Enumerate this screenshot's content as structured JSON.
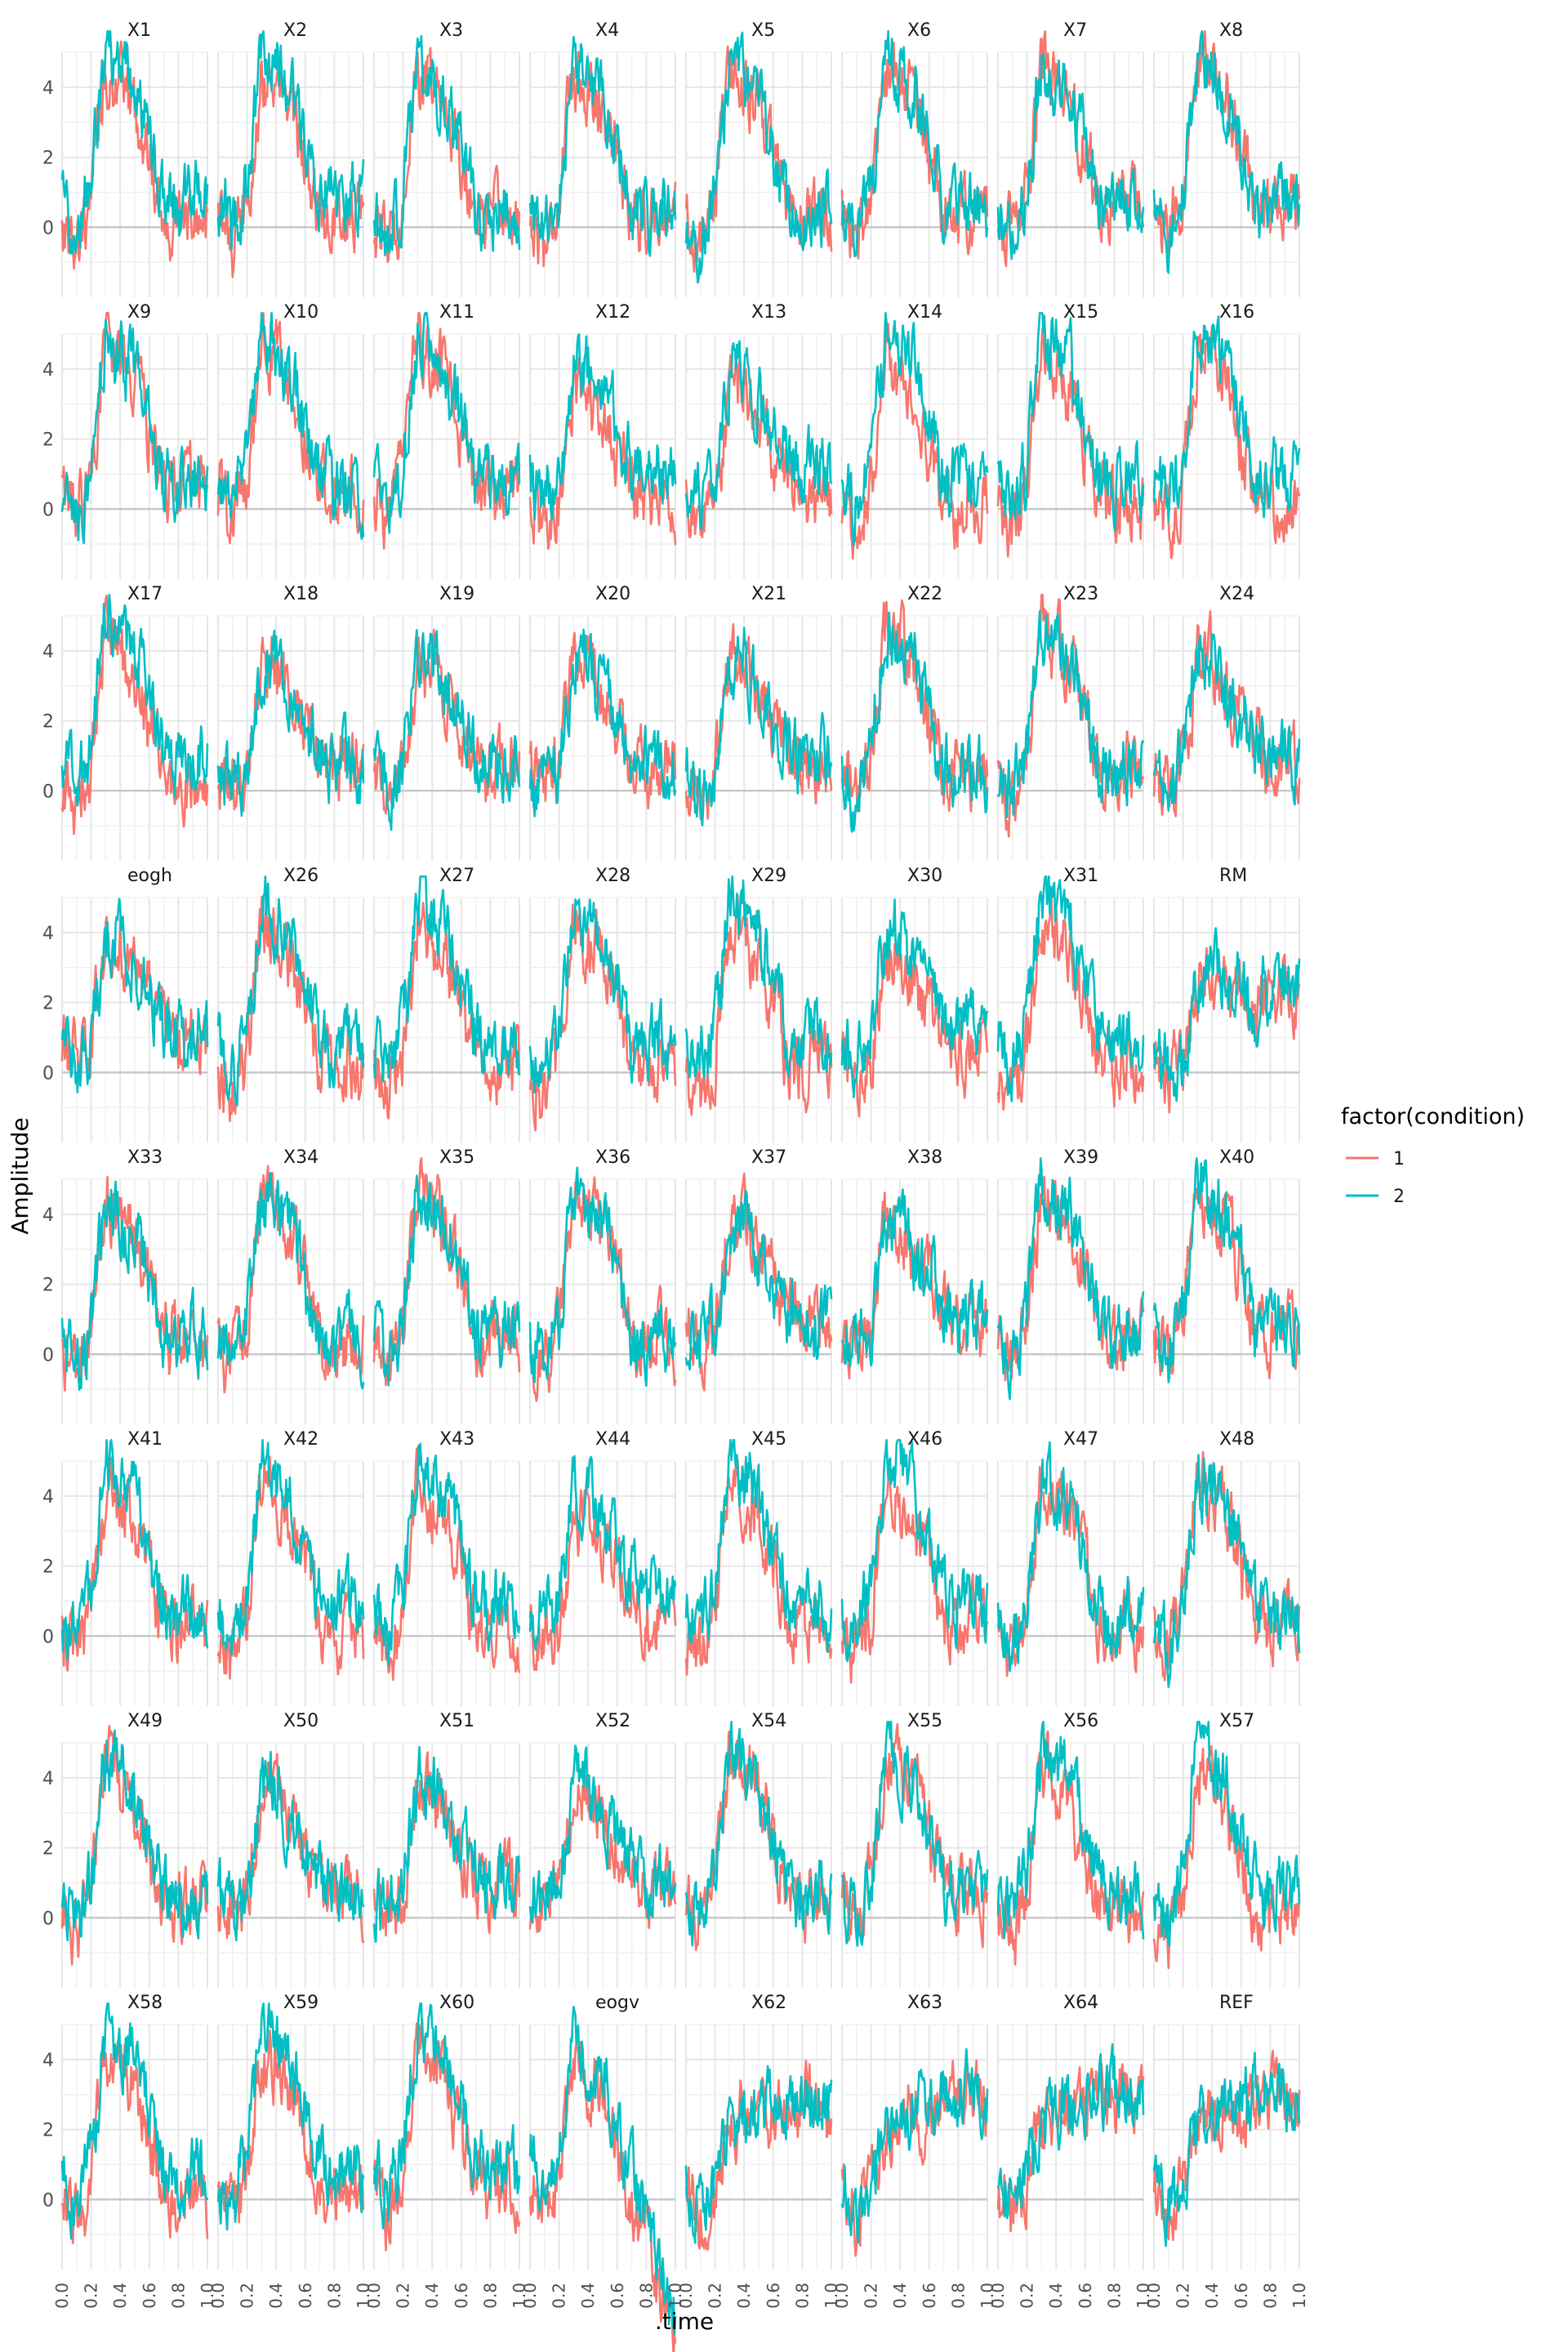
{
  "chart_data": {
    "type": "line",
    "subplot_layout": "facet_wrap",
    "nrow": 8,
    "ncol": 8,
    "panels": [
      "X1",
      "X2",
      "X3",
      "X4",
      "X5",
      "X6",
      "X7",
      "X8",
      "X9",
      "X10",
      "X11",
      "X12",
      "X13",
      "X14",
      "X15",
      "X16",
      "X17",
      "X18",
      "X19",
      "X20",
      "X21",
      "X22",
      "X23",
      "X24",
      "eogh",
      "X26",
      "X27",
      "X28",
      "X29",
      "X30",
      "X31",
      "RM",
      "X33",
      "X34",
      "X35",
      "X36",
      "X37",
      "X38",
      "X39",
      "X40",
      "X41",
      "X42",
      "X43",
      "X44",
      "X45",
      "X46",
      "X47",
      "X48",
      "X49",
      "X50",
      "X51",
      "X52",
      "X54",
      "X55",
      "X56",
      "X57",
      "X58",
      "X59",
      "X60",
      "eogv",
      "X62",
      "X63",
      "X64",
      "REF"
    ],
    "xlabel": ".time",
    "ylabel": "Amplitude",
    "xlim": [
      0.0,
      1.0
    ],
    "ylim": [
      -2.0,
      5.0
    ],
    "x_ticks": [
      "0.0",
      "0.2",
      "0.4",
      "0.6",
      "0.8",
      "1.0"
    ],
    "y_ticks": [
      "0",
      "2",
      "4"
    ],
    "grid": true,
    "legend": {
      "title": "factor(condition)",
      "position": "right",
      "entries": [
        {
          "label": "1",
          "color": "#F8766D"
        },
        {
          "label": "2",
          "color": "#00BFC4"
        }
      ]
    },
    "series": [
      {
        "name": "1",
        "color": "#F8766D"
      },
      {
        "name": "2",
        "color": "#00BFC4"
      }
    ],
    "anchor_x": [
      0.0,
      0.1,
      0.2,
      0.3,
      0.4,
      0.5,
      0.6,
      0.7,
      0.8,
      0.9,
      1.0
    ],
    "trends": {
      "wave": [
        0.2,
        -0.5,
        0.8,
        4.5,
        4.0,
        3.5,
        2.0,
        0.5,
        0.2,
        0.5,
        0.2
      ],
      "drift": [
        0.3,
        0.0,
        0.5,
        3.5,
        3.5,
        2.5,
        2.0,
        1.0,
        0.5,
        0.8,
        0.5
      ],
      "flat": [
        0.5,
        0.0,
        0.2,
        2.5,
        3.0,
        2.5,
        2.5,
        2.0,
        2.5,
        2.5,
        2.0
      ],
      "ramp": [
        0.3,
        -0.5,
        0.5,
        2.0,
        2.5,
        2.5,
        2.5,
        2.8,
        3.0,
        2.8,
        2.5
      ],
      "fall": [
        0.5,
        0.0,
        0.5,
        4.0,
        3.5,
        3.0,
        1.5,
        0.0,
        -1.0,
        -2.5,
        -4.0
      ]
    },
    "panel_trend": [
      "wave",
      "wave",
      "wave",
      "wave",
      "wave",
      "wave",
      "wave",
      "wave",
      "wave",
      "wave",
      "wave",
      "drift",
      "drift",
      "wave",
      "wave",
      "wave",
      "wave",
      "drift",
      "drift",
      "drift",
      "drift",
      "wave",
      "wave",
      "drift",
      "drift",
      "wave",
      "wave",
      "wave",
      "wave",
      "drift",
      "wave",
      "flat",
      "wave",
      "wave",
      "wave",
      "wave",
      "drift",
      "drift",
      "wave",
      "wave",
      "wave",
      "wave",
      "wave",
      "drift",
      "wave",
      "wave",
      "wave",
      "wave",
      "wave",
      "drift",
      "drift",
      "drift",
      "wave",
      "wave",
      "wave",
      "wave",
      "wave",
      "wave",
      "wave",
      "fall",
      "ramp",
      "ramp",
      "ramp",
      "ramp"
    ]
  }
}
